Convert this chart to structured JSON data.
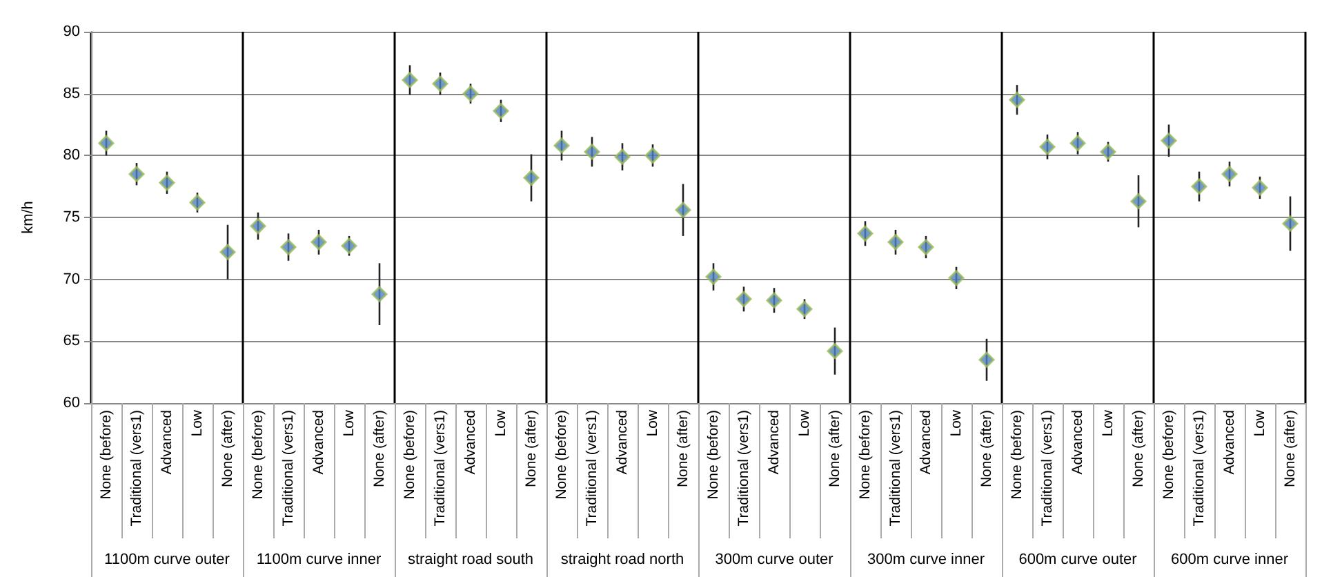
{
  "chart_data": {
    "type": "scatter",
    "ylabel": "km/h",
    "marker": "diamond",
    "grid": "y",
    "categories": [
      "None (before)",
      "Traditional (vers1)",
      "Advanced",
      "Low",
      "None (after)",
      "None (before)",
      "Traditional (vers1)",
      "Advanced",
      "Low",
      "None (after)",
      "None (before)",
      "Traditional (vers1)",
      "Advanced",
      "Low",
      "None (after)",
      "None (before)",
      "Traditional (vers1)",
      "Advanced",
      "Low",
      "None (after)",
      "None (before)",
      "Traditional (vers1)",
      "Advanced",
      "Low",
      "None (after)",
      "None (before)",
      "Traditional (vers1)",
      "Advanced",
      "Low",
      "None (after)",
      "None (before)",
      "Traditional (vers1)",
      "Advanced",
      "Low",
      "None (after)",
      "None (before)",
      "Traditional (vers1)",
      "Advanced",
      "Low",
      "None (after)"
    ],
    "annotations": [
      "1100m curve outer",
      "1100m curve inner",
      "straight road south",
      "straight road north",
      "300m curve outer",
      "300m curve inner",
      "600m curve outer",
      "600m curve inner"
    ],
    "series": [
      {
        "color": "#4f81bd",
        "values": [
          81.0,
          78.5,
          77.8,
          76.2,
          72.2,
          74.3,
          72.6,
          73.0,
          72.7,
          68.8,
          86.1,
          85.8,
          85.0,
          83.6,
          78.2,
          80.8,
          80.3,
          79.9,
          80.0,
          75.6,
          70.2,
          68.4,
          68.3,
          67.6,
          64.2,
          73.7,
          73.0,
          72.6,
          70.1,
          63.5,
          84.5,
          80.7,
          81.0,
          80.3,
          76.3,
          81.2,
          77.5,
          78.5,
          77.4,
          74.5
        ],
        "errors": [
          1.0,
          0.9,
          0.9,
          0.8,
          2.2,
          1.1,
          1.1,
          1.0,
          0.8,
          2.5,
          1.2,
          0.9,
          0.8,
          0.9,
          1.9,
          1.2,
          1.2,
          1.1,
          0.9,
          2.1,
          1.1,
          1.0,
          1.0,
          0.8,
          1.9,
          1.0,
          1.0,
          0.9,
          0.9,
          1.7,
          1.2,
          1.0,
          0.9,
          0.8,
          2.1,
          1.3,
          1.2,
          1.0,
          0.9,
          2.2
        ]
      }
    ],
    "ylim": [
      60,
      90
    ],
    "yticks": [
      60,
      65,
      70,
      75,
      80,
      85,
      90
    ]
  }
}
